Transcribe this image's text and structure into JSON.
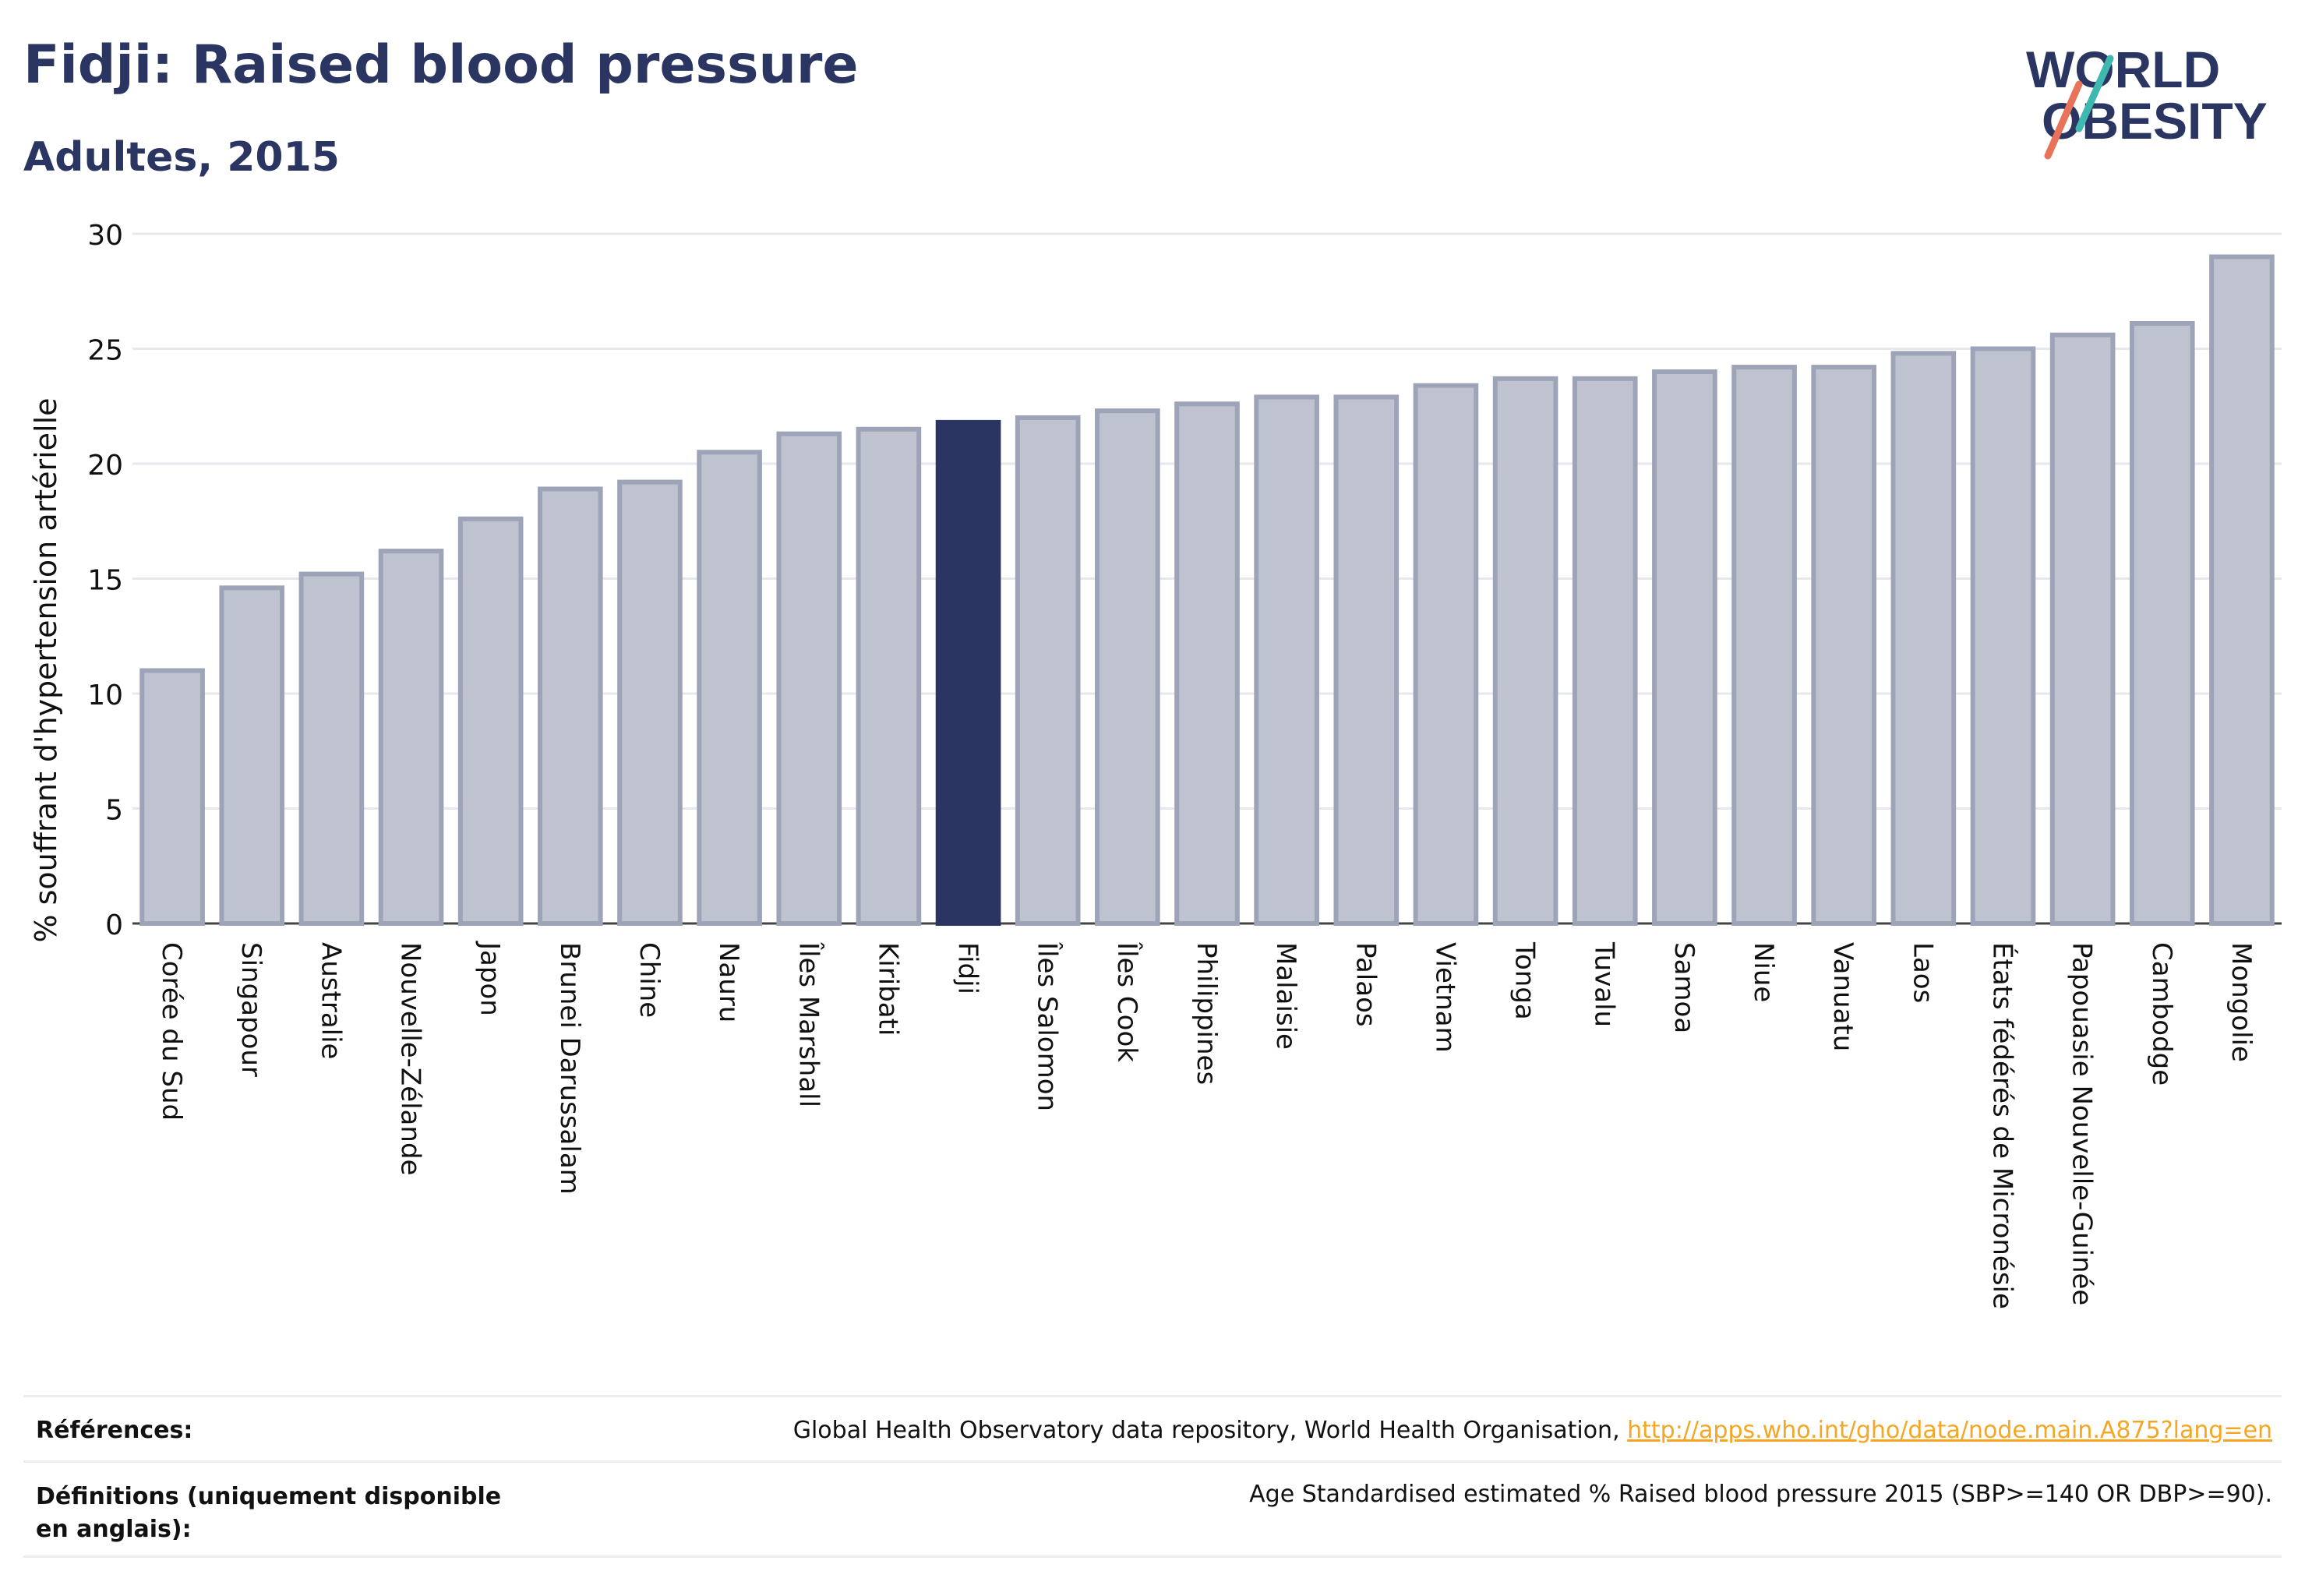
{
  "header": {
    "title": "Fidji: Raised blood pressure",
    "subtitle": "Adultes, 2015"
  },
  "logo": {
    "line1": "WORLD",
    "line2": "OBESITY"
  },
  "colors": {
    "highlight": "#2b3561",
    "bar_fill": "#bfc3d0",
    "bar_stroke": "#9ea4b8",
    "title": "#2b3561",
    "link": "#f5a623",
    "logo_slash_teal": "#3fb8b0",
    "logo_slash_coral": "#e8735a"
  },
  "chart_data": {
    "type": "bar",
    "title": "Fidji: Raised blood pressure",
    "subtitle": "Adultes, 2015",
    "xlabel": "",
    "ylabel": "% souffrant d'hypertension artérielle",
    "ylim": [
      0,
      30
    ],
    "yticks": [
      0,
      5,
      10,
      15,
      20,
      25,
      30
    ],
    "grid": true,
    "highlight": "Fidji",
    "categories": [
      "Corée du Sud",
      "Singapour",
      "Australie",
      "Nouvelle-Zélande",
      "Japon",
      "Brunei Darussalam",
      "Chine",
      "Nauru",
      "Îles Marshall",
      "Kiribati",
      "Fidji",
      "Îles Salomon",
      "Îles Cook",
      "Philippines",
      "Malaisie",
      "Palaos",
      "Vietnam",
      "Tonga",
      "Tuvalu",
      "Samoa",
      "Niue",
      "Vanuatu",
      "Laos",
      "États fédérés de Micronésie",
      "Papouasie Nouvelle-Guinée",
      "Cambodge",
      "Mongolie"
    ],
    "values": [
      11.0,
      14.6,
      15.2,
      16.2,
      17.6,
      18.9,
      19.2,
      20.5,
      21.3,
      21.5,
      21.8,
      22.0,
      22.3,
      22.6,
      22.9,
      22.9,
      23.4,
      23.7,
      23.7,
      24.0,
      24.2,
      24.2,
      24.8,
      25.0,
      25.6,
      26.1,
      29.0
    ]
  },
  "footer": {
    "references_label": "Références:",
    "references_text": "Global Health Observatory data repository, World Health Organisation, ",
    "references_link": "http://apps.who.int/gho/data/node.main.A875?lang=en",
    "definitions_label": "Définitions (uniquement disponible en anglais):",
    "definitions_text": "Age Standardised estimated % Raised blood pressure 2015 (SBP>=140 OR DBP>=90)."
  }
}
